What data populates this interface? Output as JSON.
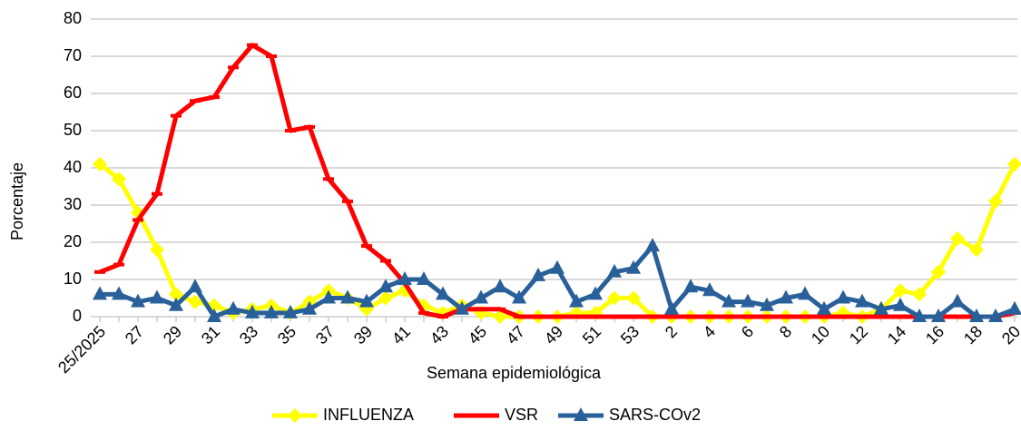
{
  "chart_data": {
    "type": "line",
    "x_label": "Semana epidemiológica",
    "y_label": "Porcentaje",
    "categories": [
      "25/2025",
      null,
      "27",
      null,
      "29",
      null,
      "31",
      null,
      "33",
      null,
      "35",
      null,
      "37",
      null,
      "39",
      null,
      "41",
      null,
      "43",
      null,
      "45",
      null,
      "47",
      null,
      "49",
      null,
      "51",
      null,
      "53",
      null,
      "2",
      null,
      "4",
      null,
      "6",
      null,
      "8",
      null,
      "10",
      null,
      "12",
      null,
      "14",
      null,
      "16",
      null,
      "18",
      null,
      "20"
    ],
    "ylim": [
      0,
      80
    ],
    "yticks": [
      0,
      10,
      20,
      30,
      40,
      50,
      60,
      70,
      80
    ],
    "grid": true,
    "legend": "bottom",
    "series": [
      {
        "name": "INFLUENZA",
        "color": "#ffff00",
        "marker": "diamond",
        "values": [
          41,
          37,
          28,
          18,
          6,
          4,
          3,
          1,
          2,
          3,
          1,
          4,
          7,
          5,
          2,
          5,
          7,
          3,
          1,
          3,
          1,
          0,
          0,
          0,
          0,
          1,
          1,
          5,
          5,
          0,
          0,
          0,
          0,
          0,
          0,
          0,
          0,
          0,
          0,
          1,
          0,
          2,
          7,
          6,
          12,
          21,
          18,
          31,
          41
        ]
      },
      {
        "name": "VSR",
        "color": "#ff0000",
        "marker": "dash",
        "values": [
          12,
          14,
          26,
          33,
          54,
          58,
          59,
          67,
          73,
          70,
          50,
          51,
          37,
          31,
          19,
          15,
          9,
          1,
          0,
          2,
          2,
          2,
          0,
          0,
          0,
          0,
          0,
          0,
          0,
          0,
          0,
          0,
          0,
          0,
          0,
          0,
          0,
          0,
          0,
          0,
          0,
          0,
          0,
          0,
          0,
          0,
          0,
          0,
          1
        ]
      },
      {
        "name": "SARS-COv2",
        "color": "#2a6099",
        "marker": "triangle",
        "values": [
          6,
          6,
          4,
          5,
          3,
          8,
          0,
          2,
          1,
          1,
          1,
          2,
          5,
          5,
          4,
          8,
          10,
          10,
          6,
          2,
          5,
          8,
          5,
          11,
          13,
          4,
          6,
          12,
          13,
          19,
          2,
          8,
          7,
          4,
          4,
          3,
          5,
          6,
          2,
          5,
          4,
          2,
          3,
          0,
          0,
          4,
          0,
          0,
          2
        ]
      }
    ]
  }
}
